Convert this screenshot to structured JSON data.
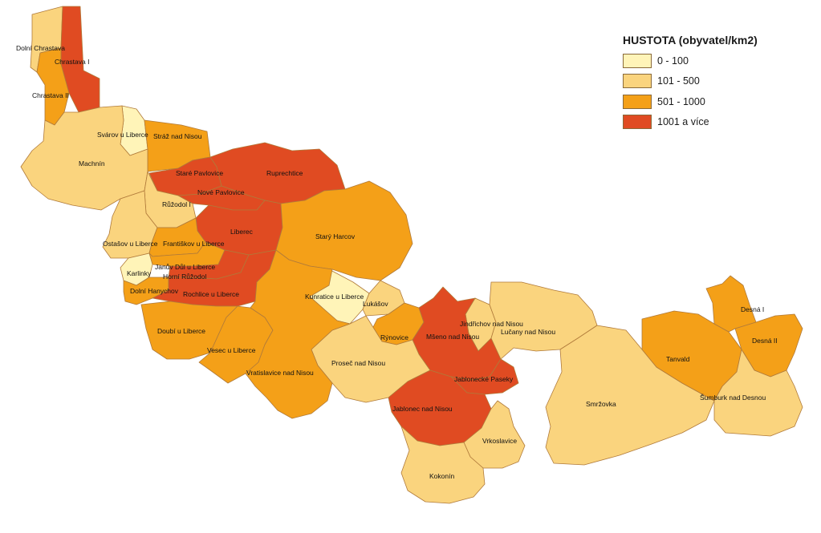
{
  "legend": {
    "title": "HUSTOTA (obyvatel/km2)",
    "classes": [
      {
        "label": "0 - 100",
        "color": "#FFF4B8"
      },
      {
        "label": "101 - 500",
        "color": "#FAD47E"
      },
      {
        "label": "501 - 1000",
        "color": "#F4A018"
      },
      {
        "label": "1001 a více",
        "color": "#E04B22"
      }
    ]
  },
  "regions": [
    {
      "name": "Dolní Chrastava",
      "class": 1
    },
    {
      "name": "Chrastava I",
      "class": 3
    },
    {
      "name": "Chrastava II",
      "class": 2
    },
    {
      "name": "Svárov u Liberce",
      "class": 0
    },
    {
      "name": "Stráž nad Nisou",
      "class": 2
    },
    {
      "name": "Machnín",
      "class": 1
    },
    {
      "name": "Staré Pavlovice",
      "class": 3
    },
    {
      "name": "Ruprechtice",
      "class": 3
    },
    {
      "name": "Nové Pavlovice",
      "class": 3
    },
    {
      "name": "Růžodol I",
      "class": 1
    },
    {
      "name": "Liberec",
      "class": 3
    },
    {
      "name": "Starý Harcov",
      "class": 2
    },
    {
      "name": "Ostašov u Liberce",
      "class": 1
    },
    {
      "name": "Františkov u Liberce",
      "class": 2
    },
    {
      "name": "Janův Důl u Liberce",
      "class": 2
    },
    {
      "name": "Horní Růžodol",
      "class": 3
    },
    {
      "name": "Karlinky",
      "class": 0
    },
    {
      "name": "Dolní Hanychov",
      "class": 2
    },
    {
      "name": "Rochlice u Liberce",
      "class": 3
    },
    {
      "name": "Kunratice u Liberce",
      "class": 0
    },
    {
      "name": "Lukášov",
      "class": 1
    },
    {
      "name": "Doubí u Liberce",
      "class": 2
    },
    {
      "name": "Rýnovice",
      "class": 2
    },
    {
      "name": "Jindřichov nad Nisou",
      "class": 1
    },
    {
      "name": "Mšeno nad Nisou",
      "class": 3
    },
    {
      "name": "Lučany nad Nisou",
      "class": 1
    },
    {
      "name": "Vesec u Liberce",
      "class": 2
    },
    {
      "name": "Proseč nad Nisou",
      "class": 1
    },
    {
      "name": "Vratislavice nad Nisou",
      "class": 2
    },
    {
      "name": "Jablonecké Paseky",
      "class": 3
    },
    {
      "name": "Jablonec nad Nisou",
      "class": 3
    },
    {
      "name": "Smržovka",
      "class": 1
    },
    {
      "name": "Tanvald",
      "class": 2
    },
    {
      "name": "Desná I",
      "class": 2
    },
    {
      "name": "Desná II",
      "class": 2
    },
    {
      "name": "Šumburk nad Desnou",
      "class": 1
    },
    {
      "name": "Vrkoslavice",
      "class": 1
    },
    {
      "name": "Kokonín",
      "class": 1
    }
  ]
}
